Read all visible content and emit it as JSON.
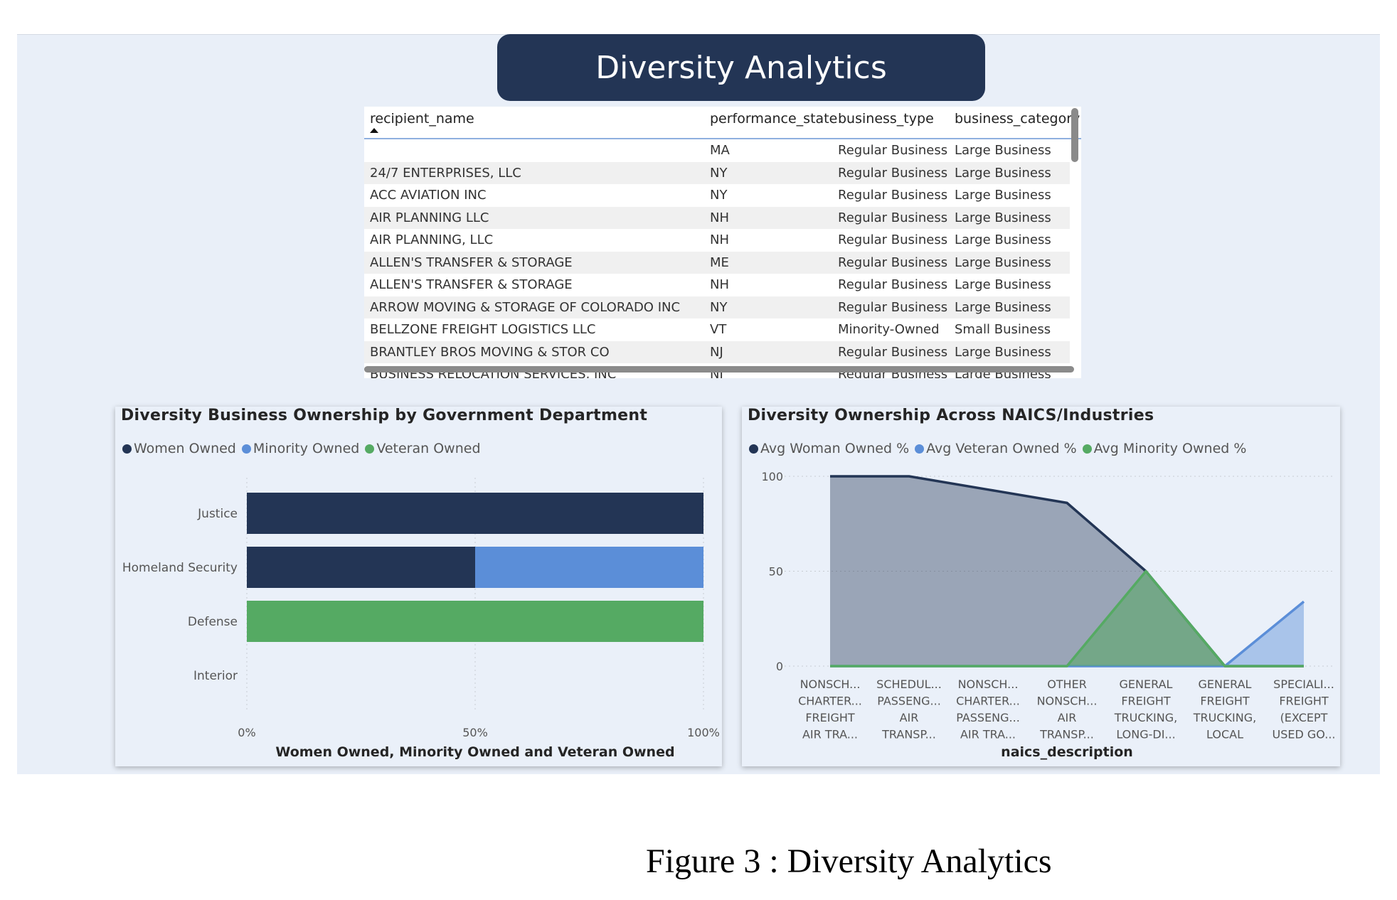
{
  "title": "Diversity Analytics",
  "table": {
    "columns": [
      "recipient_name",
      "performance_state",
      "business_type",
      "business_category"
    ],
    "rows": [
      [
        "",
        "MA",
        "Regular Business",
        "Large Business"
      ],
      [
        "24/7 ENTERPRISES, LLC",
        "NY",
        "Regular Business",
        "Large Business"
      ],
      [
        "ACC AVIATION INC",
        "NY",
        "Regular Business",
        "Large Business"
      ],
      [
        "AIR PLANNING LLC",
        "NH",
        "Regular Business",
        "Large Business"
      ],
      [
        "AIR PLANNING, LLC",
        "NH",
        "Regular Business",
        "Large Business"
      ],
      [
        "ALLEN'S TRANSFER & STORAGE",
        "ME",
        "Regular Business",
        "Large Business"
      ],
      [
        "ALLEN'S TRANSFER & STORAGE",
        "NH",
        "Regular Business",
        "Large Business"
      ],
      [
        "ARROW MOVING & STORAGE OF COLORADO INC",
        "NY",
        "Regular Business",
        "Large Business"
      ],
      [
        "BELLZONE FREIGHT LOGISTICS LLC",
        "VT",
        "Minority-Owned",
        "Small Business"
      ],
      [
        "BRANTLEY BROS MOVING & STOR CO",
        "NJ",
        "Regular Business",
        "Large Business"
      ],
      [
        "BUSINESS RELOCATION SERVICES, INC",
        "NJ",
        "Regular Business",
        "Large Business"
      ]
    ],
    "sort": "ascending"
  },
  "chart_data": [
    {
      "type": "bar",
      "orientation": "horizontal",
      "stacked": "100%",
      "title": "Diversity Business Ownership by Government Department",
      "categories": [
        "Justice",
        "Homeland Security",
        "Defense",
        "Interior"
      ],
      "series": [
        {
          "name": "Women Owned",
          "color": "#233555",
          "values": [
            100,
            50,
            0,
            0
          ]
        },
        {
          "name": "Minority Owned",
          "color": "#5b8ed8",
          "values": [
            0,
            50,
            0,
            0
          ]
        },
        {
          "name": "Veteran Owned",
          "color": "#55aa63",
          "values": [
            0,
            0,
            100,
            0
          ]
        }
      ],
      "xlabel": "Women Owned, Minority Owned and Veteran Owned",
      "xticks": [
        "0%",
        "50%",
        "100%"
      ],
      "xlim": [
        0,
        100
      ],
      "legend": "top-left",
      "grid": "vertical dotted"
    },
    {
      "type": "area",
      "title": "Diversity Ownership Across NAICS/Industries",
      "categories": [
        [
          "NONSCH...",
          "CHARTER...",
          "FREIGHT",
          "AIR TRA..."
        ],
        [
          "SCHEDUL...",
          "PASSENG...",
          "AIR",
          "TRANSP..."
        ],
        [
          "NONSCH...",
          "CHARTER...",
          "PASSENG...",
          "AIR TRA..."
        ],
        [
          "OTHER",
          "NONSCH...",
          "AIR",
          "TRANSP..."
        ],
        [
          "GENERAL",
          "FREIGHT",
          "TRUCKING,",
          "LONG-DI..."
        ],
        [
          "GENERAL",
          "FREIGHT",
          "TRUCKING,",
          "LOCAL"
        ],
        [
          "SPECIALI...",
          "FREIGHT",
          "(EXCEPT",
          "USED GO..."
        ]
      ],
      "series": [
        {
          "name": "Avg Woman Owned %",
          "color": "#233555",
          "values": [
            100,
            100,
            93,
            86,
            50,
            0,
            0
          ]
        },
        {
          "name": "Avg Veteran Owned %",
          "color": "#5b8ed8",
          "values": [
            0,
            0,
            0,
            0,
            0,
            0,
            34
          ]
        },
        {
          "name": "Avg Minority Owned %",
          "color": "#55aa63",
          "values": [
            0,
            0,
            0,
            0,
            50,
            0,
            0
          ]
        }
      ],
      "xlabel": "naics_description",
      "yticks": [
        "0",
        "50",
        "100"
      ],
      "ylim": [
        0,
        100
      ],
      "legend": "top-left",
      "grid": "horizontal dotted"
    }
  ],
  "caption": "Figure 3 : Diversity Analytics"
}
